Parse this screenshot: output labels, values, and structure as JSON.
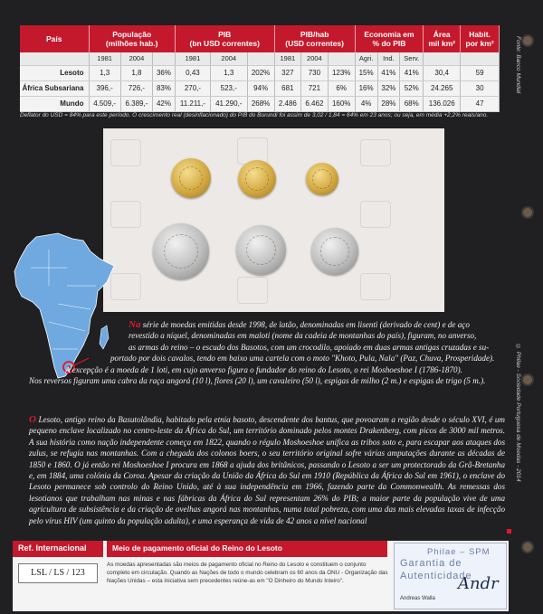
{
  "side": {
    "source": "Fonte: Banco Mundial",
    "copyright": "© Philae - Sociedade Portuguesa de Moedas - 2014"
  },
  "table": {
    "headers": {
      "country": "País",
      "population": "População\n(milhões hab.)",
      "pib": "PIB\n(bn USD correntes)",
      "pib_hab": "PIB/hab\n(USD correntes)",
      "economy": "Economia em\n% do PIB",
      "area": "Área\nmil km²",
      "density": "Habit.\npor km²"
    },
    "years": [
      "1981",
      "2004",
      "",
      "1981",
      "2004",
      "",
      "1981",
      "2004",
      "",
      "Agri.",
      "Ind.",
      "Serv."
    ],
    "rows": [
      {
        "country": "Lesoto",
        "cells": [
          "1,3",
          "1,8",
          "36%",
          "0,43",
          "1,3",
          "202%",
          "327",
          "730",
          "123%",
          "15%",
          "41%",
          "41%",
          "30,4",
          "59"
        ]
      },
      {
        "country": "África Subsariana",
        "cells": [
          "396,-",
          "726,-",
          "83%",
          "270,-",
          "523,-",
          "94%",
          "681",
          "721",
          "6%",
          "16%",
          "32%",
          "52%",
          "24.265",
          "30"
        ]
      },
      {
        "country": "Mundo",
        "cells": [
          "4.509,-",
          "6.389,-",
          "42%",
          "11.211,-",
          "41.290,-",
          "268%",
          "2.486",
          "6.462",
          "160%",
          "4%",
          "28%",
          "68%",
          "136.026",
          "47"
        ]
      }
    ],
    "footnote": "Deflator do USD = 84% para este período.  O crescimento real (desinflacionado) do PIB do Burundi foi assim de 3,02 / 1,84 = 64% em 23 anos; ou seja, em média +2,2% reais/ano."
  },
  "text": {
    "p1_drop": "Na",
    "p1_lines": [
      "série de moedas emitidas desde 1998, de latão, denominadas em lisenti (derivado de cent) e de aço",
      "revestido a níquel, denominadas em maloti (nome da cadeia de montanhas do país), figuram, no anverso,",
      "as armas do reino – o escudo dos Basotos, com um crocodilo, apoiado em duas armas antigas cruzadas e su-",
      "portado por dois cavalos, tendo em baixo uma cartela com o moto \"Khoto, Pula, Nala\" (Paz, Chuva, Prosperidade).",
      "A excepção é a moeda de 1 loti, em cujo anverso figura o fundador do reino do Lesoto, o rei Moshoeshoe I (1786-1870).",
      "Nos reversos figuram uma cabra da raça angorá (10 l), flores (20 l), um cavaleiro (50 l), espigas de milho (2 m.) e espigas de trigo (5 m.)."
    ],
    "p2_drop": "O",
    "p2": "Lesoto, antigo reino da Basutolândia, habitado pela etnia basoto, descendente dos bantus, que povoaram a região desde o século XVI, é um pequeno enclave localizado no centro-leste da África do Sul, um território dominado pelos montes Drakenberg, com picos de 3000 mil metros. A sua história como nação independente começa em 1822, quando o régulo Moshoeshoe unifica as tribos soto e, para escapar aos ataques dos zulus, se refugia nas montanhas. Com a chegada dos colonos boers, o seu território original sofre várias amputações durante as décadas de 1850 e 1860. O já então rei Moshoeshoe I procura em 1868 a ajuda dos britânicos, passando o Lesoto a ser um protectorado da Grã-Bretanha e, em 1884, uma colónia da Coroa. Apesar da criação da União da África do Sul em 1910 (República da África do Sul em 1961), o enclave do Lesoto permanece sob controlo do Reino Unido, até à sua independência em 1966, fazendo parte da Commonwealth. As remessas dos lesotianos que trabalham nas minas e nas fábricas da África do Sul representam 26% do PIB; a maior parte da população vive de uma agricultura de subsistência e da criação de ovelhas angorá nas montanhas, numa total pobreza, com uma das mais elevadas taxas de infecção pelo vírus HIV (um quinto da população adulta), e uma esperança de vida de 42 anos a nível nacional"
  },
  "bottom": {
    "ref_title": "Ref. Internacional",
    "ref_code": "LSL / LS / 123",
    "meio_title": "Meio de pagamento oficial do Reino do Lesoto",
    "meio_text": "As moedas apresentadas são meios de pagamento oficial no Reino do Lesoto e constituem o conjunto completo em circulação. Quando as Nações de todo o mundo celebram os 60 anos da ONU - Organização das Nações Unidas – esta iniciativa sem precedentes reúne-as em \"O Dinheiro do Mundo Inteiro\".",
    "seal_line1": "Philae – SPM",
    "seal_line2": "Garantia de",
    "seal_line3": "Autenticidade",
    "seal_signature": "Andr",
    "seal_name": "Andreas Walla"
  }
}
